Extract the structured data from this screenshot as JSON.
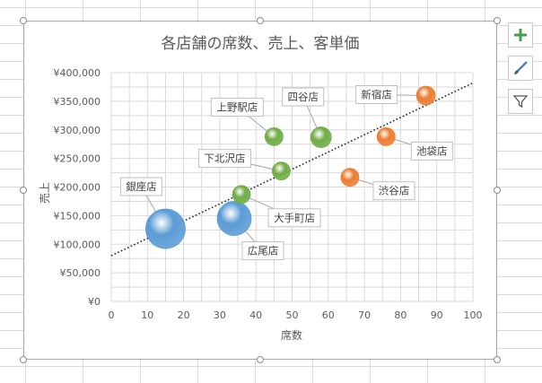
{
  "chart_data": {
    "type": "bubble",
    "title": "各店舗の席数、売上、客単価",
    "xlabel": "席数",
    "ylabel": "売上",
    "xlim": [
      0,
      100
    ],
    "ylim": [
      0,
      400000
    ],
    "xticks": [
      0,
      10,
      20,
      30,
      40,
      50,
      60,
      70,
      80,
      90,
      100
    ],
    "yticks": [
      0,
      50000,
      100000,
      150000,
      200000,
      250000,
      300000,
      350000,
      400000
    ],
    "ytick_labels": [
      "¥0",
      "¥50,000",
      "¥100,000",
      "¥150,000",
      "¥200,000",
      "¥250,000",
      "¥300,000",
      "¥350,000",
      "¥400,000"
    ],
    "grid": true,
    "trendline": {
      "type": "linear",
      "style": "dotted",
      "from": [
        0,
        80000
      ],
      "to": [
        100,
        382000
      ]
    },
    "points": [
      {
        "label": "銀座店",
        "x": 15,
        "y": 127000,
        "size": 22,
        "color": "#5b9bd5"
      },
      {
        "label": "広尾店",
        "x": 34,
        "y": 145000,
        "size": 19,
        "color": "#5b9bd5"
      },
      {
        "label": "大手町店",
        "x": 36,
        "y": 187000,
        "size": 10,
        "color": "#70ad47"
      },
      {
        "label": "下北沢店",
        "x": 47,
        "y": 228000,
        "size": 10,
        "color": "#70ad47"
      },
      {
        "label": "上野駅店",
        "x": 45,
        "y": 288000,
        "size": 10,
        "color": "#70ad47"
      },
      {
        "label": "四谷店",
        "x": 58,
        "y": 287000,
        "size": 11.5,
        "color": "#70ad47"
      },
      {
        "label": "渋谷店",
        "x": 66,
        "y": 217000,
        "size": 10,
        "color": "#ed7d31"
      },
      {
        "label": "池袋店",
        "x": 76,
        "y": 288000,
        "size": 10,
        "color": "#ed7d31"
      },
      {
        "label": "新宿店",
        "x": 87,
        "y": 360000,
        "size": 10.5,
        "color": "#ed7d31"
      }
    ]
  },
  "side_buttons": {
    "elements": "plus-icon",
    "styles": "brush-icon",
    "filter": "filter-icon"
  }
}
